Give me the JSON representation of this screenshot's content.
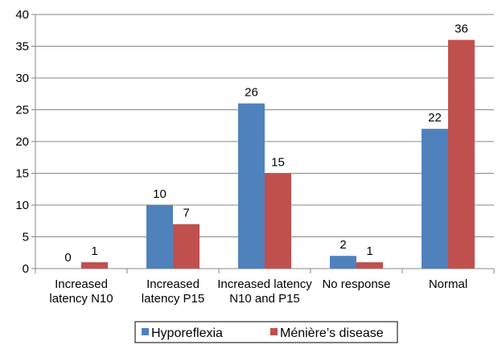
{
  "chart_data": {
    "type": "bar",
    "title": "",
    "xlabel": "",
    "ylabel": "",
    "ylim": [
      0,
      40
    ],
    "yticks": [
      0,
      5,
      10,
      15,
      20,
      25,
      30,
      35,
      40
    ],
    "grid": "horizontal",
    "legend_position": "bottom",
    "categories": [
      [
        "Increased",
        "latency N10"
      ],
      [
        "Increased",
        "latency P15"
      ],
      [
        "Increased latency",
        "N10 and P15"
      ],
      [
        "No response"
      ],
      [
        "Normal"
      ]
    ],
    "series": [
      {
        "name": "Hyporeflexia",
        "color": "#4f81bd",
        "values": [
          0,
          10,
          26,
          2,
          22
        ]
      },
      {
        "name": "Ménière’s disease",
        "color": "#c0504d",
        "values": [
          1,
          7,
          15,
          1,
          36
        ]
      }
    ]
  }
}
